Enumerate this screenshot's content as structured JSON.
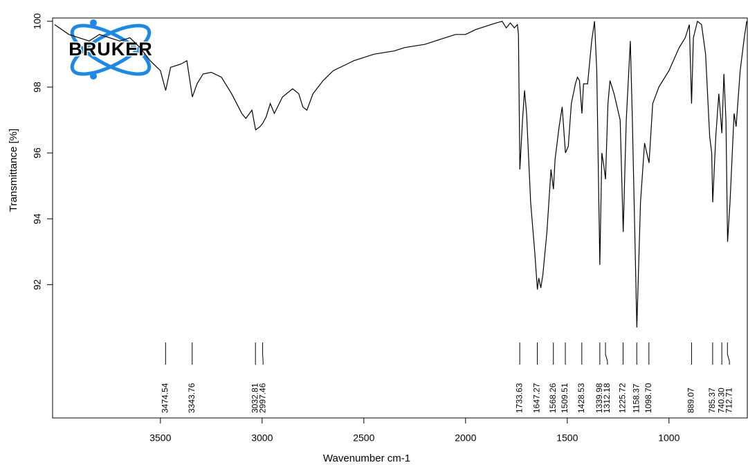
{
  "logo": "BRUKER",
  "chart_data": {
    "type": "line",
    "xlabel": "Wavenumber cm-1",
    "ylabel": "Transmittance [%]",
    "color": "#000000",
    "xlim": [
      4030,
      615
    ],
    "ylim": [
      87.95,
      100.1
    ],
    "xticks": [
      3500,
      3000,
      2500,
      2000,
      1500,
      1000
    ],
    "yticks": [
      92,
      94,
      96,
      98,
      100
    ],
    "x": [
      4020,
      3950,
      3900,
      3850,
      3800,
      3750,
      3700,
      3650,
      3600,
      3550,
      3500,
      3474,
      3450,
      3400,
      3370,
      3343,
      3320,
      3290,
      3250,
      3200,
      3150,
      3100,
      3080,
      3050,
      3032,
      3010,
      2997,
      2980,
      2960,
      2940,
      2900,
      2850,
      2820,
      2800,
      2780,
      2750,
      2700,
      2650,
      2600,
      2550,
      2500,
      2450,
      2400,
      2350,
      2300,
      2250,
      2200,
      2150,
      2100,
      2050,
      2000,
      1950,
      1900,
      1850,
      1820,
      1800,
      1780,
      1760,
      1745,
      1740,
      1733,
      1720,
      1710,
      1700,
      1680,
      1660,
      1647,
      1640,
      1630,
      1620,
      1600,
      1580,
      1568,
      1560,
      1540,
      1525,
      1509,
      1495,
      1480,
      1460,
      1450,
      1440,
      1428,
      1420,
      1400,
      1380,
      1366,
      1355,
      1340,
      1330,
      1320,
      1312,
      1300,
      1290,
      1270,
      1240,
      1225,
      1210,
      1190,
      1180,
      1158,
      1140,
      1120,
      1098,
      1080,
      1050,
      1000,
      950,
      920,
      900,
      889,
      880,
      860,
      840,
      820,
      800,
      790,
      785,
      770,
      755,
      740,
      730,
      720,
      712,
      700,
      680,
      670,
      650,
      630,
      618
    ],
    "values": [
      99.9,
      99.6,
      99.5,
      99.4,
      99.6,
      99.5,
      99.4,
      99.5,
      99.2,
      98.8,
      98.5,
      97.9,
      98.6,
      98.7,
      98.8,
      97.7,
      98.1,
      98.4,
      98.45,
      98.3,
      97.8,
      97.2,
      97.05,
      97.3,
      96.7,
      96.8,
      96.9,
      97.1,
      97.5,
      97.2,
      97.7,
      97.95,
      97.8,
      97.4,
      97.3,
      97.8,
      98.2,
      98.5,
      98.65,
      98.8,
      98.9,
      99.0,
      99.05,
      99.1,
      99.2,
      99.25,
      99.3,
      99.4,
      99.5,
      99.6,
      99.6,
      99.75,
      99.85,
      99.95,
      100.0,
      99.8,
      99.95,
      99.8,
      99.9,
      99.6,
      95.5,
      97.0,
      97.9,
      97.2,
      94.5,
      93.0,
      91.85,
      92.2,
      91.9,
      92.3,
      93.6,
      95.5,
      94.9,
      95.8,
      96.8,
      97.4,
      96.0,
      96.2,
      97.5,
      98.1,
      98.3,
      98.2,
      97.2,
      98.1,
      98.1,
      99.4,
      100.0,
      98.5,
      92.6,
      96.0,
      95.6,
      95.2,
      97.5,
      98.2,
      97.8,
      97.0,
      93.6,
      97.0,
      99.4,
      97.0,
      90.7,
      94.5,
      96.3,
      95.7,
      97.5,
      98.0,
      98.5,
      99.2,
      99.5,
      99.9,
      97.5,
      99.5,
      100.0,
      99.9,
      99.0,
      96.5,
      96.0,
      94.5,
      96.5,
      97.8,
      96.6,
      98.4,
      97.0,
      93.3,
      94.5,
      97.2,
      96.8,
      98.5,
      99.5,
      100.0
    ],
    "peaks": [
      {
        "value": 3474.54,
        "label": "3474.54"
      },
      {
        "value": 3343.76,
        "label": "3343.76"
      },
      {
        "value": 3032.81,
        "label": "3032.81"
      },
      {
        "value": 2997.46,
        "label": "2997.46"
      },
      {
        "value": 1733.63,
        "label": "1733.63"
      },
      {
        "value": 1647.27,
        "label": "1647.27"
      },
      {
        "value": 1568.26,
        "label": "1568.26"
      },
      {
        "value": 1509.51,
        "label": "1509.51"
      },
      {
        "value": 1428.53,
        "label": "1428.53"
      },
      {
        "value": 1339.98,
        "label": "1339.98"
      },
      {
        "value": 1312.18,
        "label": "1312.18"
      },
      {
        "value": 1225.72,
        "label": "1225.72"
      },
      {
        "value": 1158.37,
        "label": "1158.37"
      },
      {
        "value": 1098.7,
        "label": "1098.70"
      },
      {
        "value": 889.07,
        "label": "889.07"
      },
      {
        "value": 785.37,
        "label": "785.37"
      },
      {
        "value": 740.3,
        "label": "740.30"
      },
      {
        "value": 712.71,
        "label": "712.71"
      }
    ]
  }
}
